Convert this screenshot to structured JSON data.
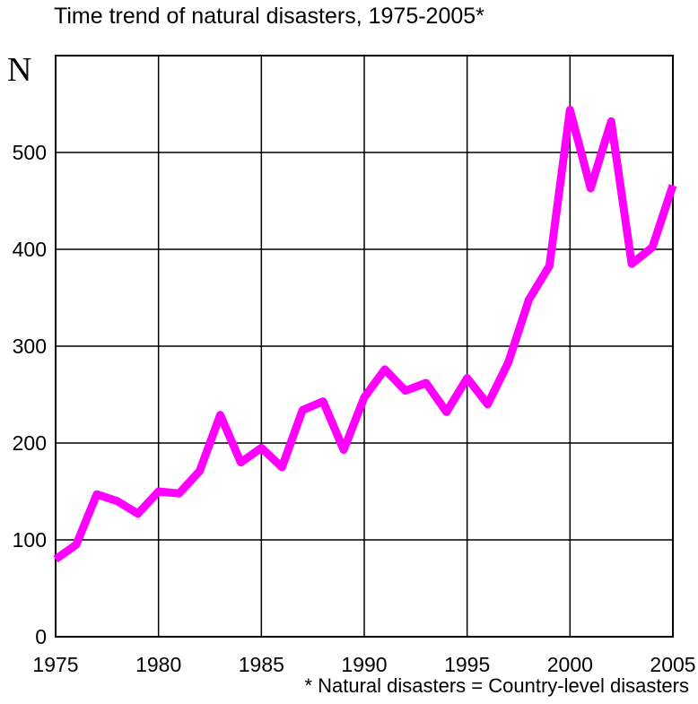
{
  "chart_data": {
    "type": "line",
    "title": "Time trend of natural disasters, 1975-2005*",
    "ylabel": "N",
    "xlabel": "",
    "footnote": "* Natural disasters = Country-level disasters",
    "xlim": [
      1975,
      2005
    ],
    "ylim": [
      0,
      600
    ],
    "x_ticks": [
      1975,
      1980,
      1985,
      1990,
      1995,
      2000,
      2005
    ],
    "y_ticks": [
      0,
      100,
      200,
      300,
      400,
      500
    ],
    "grid": true,
    "line_color": "#ff00ff",
    "series": [
      {
        "x": [
          1975,
          1976,
          1977,
          1978,
          1979,
          1980,
          1981,
          1982,
          1983,
          1984,
          1985,
          1986,
          1987,
          1988,
          1989,
          1990,
          1991,
          1992,
          1993,
          1994,
          1995,
          1996,
          1997,
          1998,
          1999,
          2000,
          2001,
          2002,
          2003,
          2004,
          2005
        ],
        "values": [
          80,
          95,
          147,
          140,
          127,
          150,
          148,
          171,
          229,
          180,
          195,
          175,
          234,
          243,
          193,
          247,
          276,
          254,
          262,
          232,
          267,
          240,
          283,
          348,
          383,
          544,
          463,
          532,
          385,
          402,
          466
        ]
      }
    ]
  }
}
